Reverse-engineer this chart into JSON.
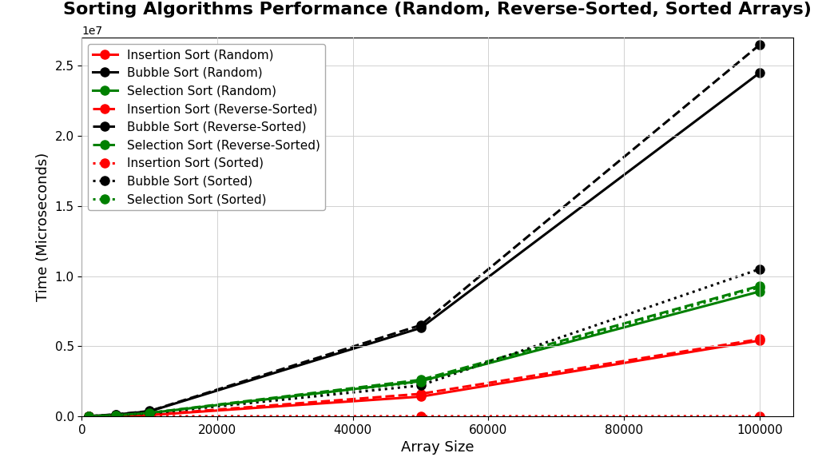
{
  "title": "Sorting Algorithms Performance (Random, Reverse-Sorted, Sorted Arrays)",
  "xlabel": "Array Size",
  "ylabel": "Time (Microseconds)",
  "sizes": [
    1000,
    5000,
    10000,
    50000,
    100000
  ],
  "series": [
    {
      "label": "Insertion Sort (Random)",
      "color": "red",
      "linestyle": "-",
      "marker": "o",
      "values": [
        5000,
        30000,
        80000,
        1400000,
        5400000
      ]
    },
    {
      "label": "Bubble Sort (Random)",
      "color": "black",
      "linestyle": "-",
      "marker": "o",
      "values": [
        8000,
        120000,
        350000,
        6300000,
        24500000
      ]
    },
    {
      "label": "Selection Sort (Random)",
      "color": "green",
      "linestyle": "-",
      "marker": "o",
      "values": [
        4000,
        70000,
        230000,
        2500000,
        8900000
      ]
    },
    {
      "label": "Insertion Sort (Reverse-Sorted)",
      "color": "red",
      "linestyle": "--",
      "marker": "o",
      "values": [
        6000,
        40000,
        100000,
        1600000,
        5500000
      ]
    },
    {
      "label": "Bubble Sort (Reverse-Sorted)",
      "color": "black",
      "linestyle": "--",
      "marker": "o",
      "values": [
        9000,
        130000,
        370000,
        6500000,
        26500000
      ]
    },
    {
      "label": "Selection Sort (Reverse-Sorted)",
      "color": "green",
      "linestyle": "--",
      "marker": "o",
      "values": [
        4500,
        75000,
        240000,
        2600000,
        9300000
      ]
    },
    {
      "label": "Insertion Sort (Sorted)",
      "color": "red",
      "linestyle": ":",
      "marker": "o",
      "values": [
        100,
        300,
        500,
        1000,
        2000
      ]
    },
    {
      "label": "Bubble Sort (Sorted)",
      "color": "black",
      "linestyle": ":",
      "marker": "o",
      "values": [
        5000,
        60000,
        200000,
        2200000,
        10500000
      ]
    },
    {
      "label": "Selection Sort (Sorted)",
      "color": "green",
      "linestyle": ":",
      "marker": "o",
      "values": [
        4000,
        70000,
        230000,
        2450000,
        9200000
      ]
    }
  ],
  "ylim": [
    0,
    27000000
  ],
  "xlim": [
    0,
    105000
  ],
  "background_color": "#ffffff",
  "grid_color": "#cccccc",
  "title_fontsize": 16,
  "label_fontsize": 13,
  "tick_fontsize": 11,
  "legend_fontsize": 11,
  "linewidth": 2.2,
  "markersize": 8,
  "xticks": [
    0,
    20000,
    40000,
    60000,
    80000,
    100000
  ],
  "yticks": [
    0,
    5000000,
    10000000,
    15000000,
    20000000,
    25000000
  ]
}
